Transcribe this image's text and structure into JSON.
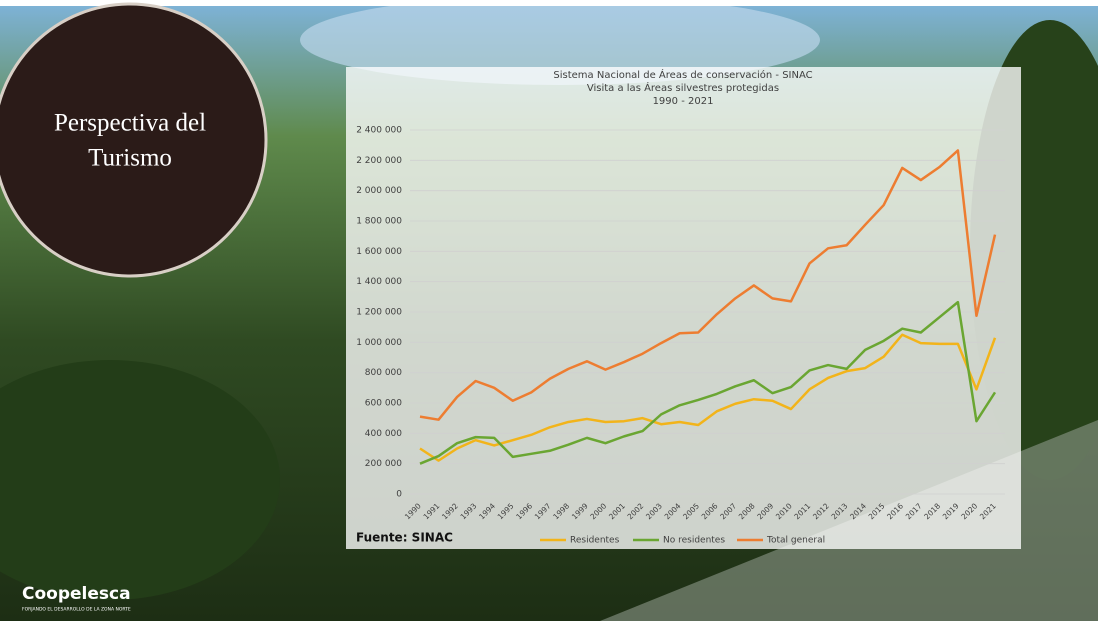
{
  "slide": {
    "heading": [
      "Perspectiva del",
      "Turismo"
    ],
    "logo": {
      "name": "Coopelesca",
      "tagline": "FORJANDO EL DESARROLLO DE LA ZONA NORTE"
    }
  },
  "chart_data": {
    "type": "line",
    "title": [
      "Sistema Nacional de Áreas de conservación - SINAC",
      "Visita a las Áreas silvestres protegidas",
      "1990 - 2021"
    ],
    "source": "Fuente: SINAC",
    "categories": [
      "1990",
      "1991",
      "1992",
      "1993",
      "1994",
      "1995",
      "1996",
      "1997",
      "1998",
      "1999",
      "2000",
      "2001",
      "2002",
      "2003",
      "2004",
      "2005",
      "2006",
      "2007",
      "2008",
      "2009",
      "2010",
      "2011",
      "2012",
      "2013",
      "2014",
      "2015",
      "2016",
      "2017",
      "2018",
      "2019",
      "2020",
      "2021"
    ],
    "series": [
      {
        "name": "Residentes",
        "color": "#f2b41a",
        "values": [
          300000,
          220000,
          300000,
          355000,
          320000,
          355000,
          390000,
          440000,
          475000,
          495000,
          475000,
          480000,
          500000,
          460000,
          475000,
          455000,
          545000,
          595000,
          625000,
          615000,
          560000,
          690000,
          765000,
          810000,
          830000,
          905000,
          1050000,
          995000,
          990000,
          990000,
          690000,
          1030000
        ]
      },
      {
        "name": "No residentes",
        "color": "#6aa632",
        "values": [
          200000,
          250000,
          335000,
          375000,
          370000,
          245000,
          265000,
          285000,
          325000,
          370000,
          335000,
          380000,
          415000,
          525000,
          585000,
          620000,
          660000,
          710000,
          750000,
          665000,
          705000,
          815000,
          850000,
          825000,
          950000,
          1010000,
          1090000,
          1065000,
          1165000,
          1265000,
          480000,
          670000
        ]
      },
      {
        "name": "Total general",
        "color": "#ed7d31",
        "values": [
          510000,
          490000,
          640000,
          745000,
          700000,
          615000,
          670000,
          760000,
          825000,
          875000,
          820000,
          870000,
          925000,
          995000,
          1060000,
          1065000,
          1185000,
          1290000,
          1375000,
          1290000,
          1270000,
          1520000,
          1620000,
          1640000,
          1775000,
          1905000,
          2150000,
          2070000,
          2155000,
          2265000,
          1175000,
          1710000
        ]
      }
    ],
    "ylim": [
      0,
      2400000
    ],
    "yticks": [
      0,
      {
        "value": 200000,
        "label": "200 000"
      },
      {
        "value": 400000,
        "label": "400 000"
      },
      {
        "value": 600000,
        "label": "600 000"
      },
      {
        "value": 800000,
        "label": "800 000"
      },
      {
        "value": 1000000,
        "label": "1 000 000"
      },
      {
        "value": 1200000,
        "label": "1 200 000"
      },
      {
        "value": 1400000,
        "label": "1 400 000"
      },
      {
        "value": 1600000,
        "label": "1 600 000"
      },
      {
        "value": 1800000,
        "label": "1 800 000"
      },
      {
        "value": 2000000,
        "label": "2 000 000"
      },
      {
        "value": 2200000,
        "label": "2 200 000"
      },
      {
        "value": 2400000,
        "label": "2 400 000"
      }
    ],
    "grid": true,
    "legend": "bottom"
  }
}
